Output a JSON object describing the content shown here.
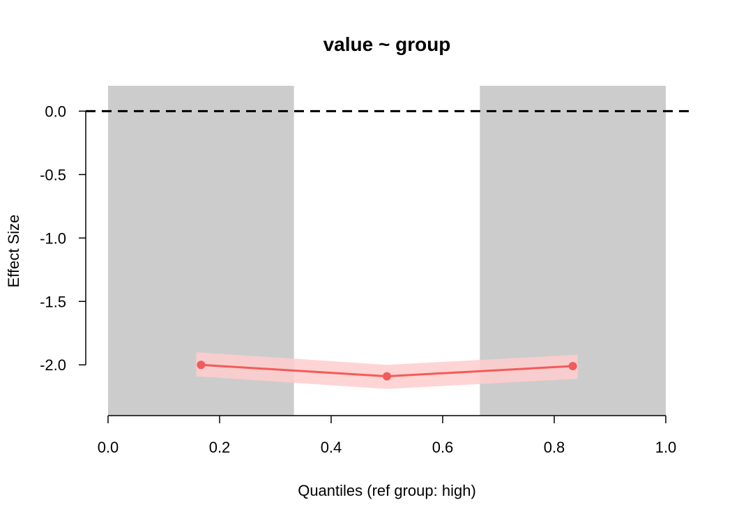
{
  "chart_data": {
    "type": "line",
    "title": "value ~ group",
    "xlabel": "Quantiles (ref group: high)",
    "ylabel": "Effect Size",
    "xlim": [
      0.0,
      1.0
    ],
    "ylim": [
      -2.4,
      0.2
    ],
    "x_ticks": [
      "0.0",
      "0.2",
      "0.4",
      "0.6",
      "0.8",
      "1.0"
    ],
    "y_ticks": [
      "0.0",
      "-0.5",
      "-1.0",
      "-1.5",
      "-2.0"
    ],
    "reference_line": {
      "y": 0.0,
      "style": "dashed"
    },
    "shaded_bands": [
      {
        "x_start": 0.0,
        "x_end": 0.3333
      },
      {
        "x_start": 0.6667,
        "x_end": 1.0
      }
    ],
    "series": [
      {
        "x": [
          0.1667,
          0.5,
          0.8333
        ],
        "y": [
          -2.0,
          -2.09,
          -2.01
        ],
        "ci_lower": [
          -2.09,
          -2.19,
          -2.11
        ],
        "ci_upper": [
          -1.9,
          -2.0,
          -1.92
        ]
      }
    ],
    "colors": {
      "line": "#f25b5b",
      "ribbon": "#ffcccc",
      "band": "#cccccc",
      "axis": "#000000"
    }
  }
}
